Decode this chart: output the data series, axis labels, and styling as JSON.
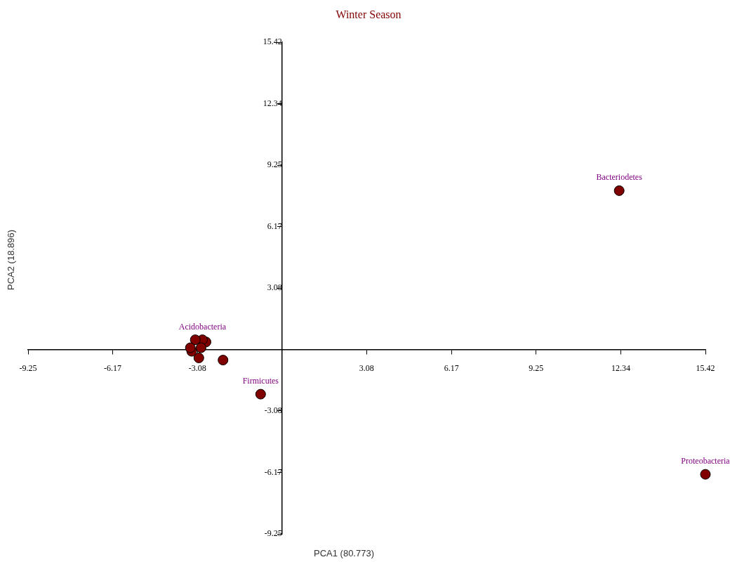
{
  "chart_data": {
    "type": "scatter",
    "title": "Winter Season",
    "xlabel": "PCA1 (80.773)",
    "ylabel": "PCA2 (18.896)",
    "x": [
      12.28,
      15.42,
      -0.78,
      -2.15,
      -3.03,
      -2.77,
      -2.9,
      -3.29,
      -3.16,
      -3.34,
      -2.95
    ],
    "values": [
      7.97,
      -6.26,
      -2.24,
      -0.53,
      -0.42,
      0.38,
      0.49,
      -0.09,
      0.49,
      0.09,
      0.09
    ],
    "color": "#800000",
    "marker": "circle",
    "annotations": [
      {
        "text": "Bacteriodetes",
        "x": 12.28,
        "y": 7.97
      },
      {
        "text": "Proteobacteria",
        "x": 15.42,
        "y": -6.26
      },
      {
        "text": "Firmicutes",
        "x": -0.78,
        "y": -2.24
      },
      {
        "text": "Acidobacteria",
        "x": -2.9,
        "y": 0.49
      }
    ],
    "xlim": [
      -9.25,
      15.42
    ],
    "ylim": [
      -9.25,
      15.42
    ],
    "xticks": [
      -9.25,
      -6.17,
      -3.08,
      3.08,
      6.17,
      9.25,
      12.34,
      15.42
    ],
    "yticks": [
      -9.25,
      -6.17,
      -3.08,
      3.08,
      6.17,
      9.25,
      12.34,
      15.42
    ],
    "grid": false,
    "legend": false
  }
}
